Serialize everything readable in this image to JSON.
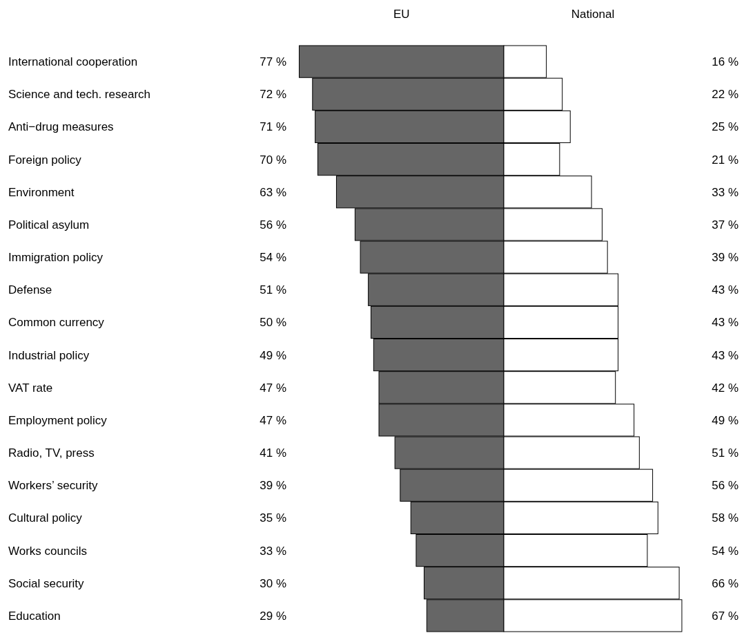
{
  "chart_data": [
    {
      "type": "bar",
      "orientation": "horizontal",
      "xlim": [
        77,
        0
      ],
      "categories": [
        "International cooperation",
        "Science and tech. research",
        "Anti−drug measures",
        "Foreign policy",
        "Environment",
        "Political asylum",
        "Immigration policy",
        "Defense",
        "Common currency",
        "Industrial policy",
        "VAT rate",
        "Employment policy",
        "Radio, TV, press",
        "Workers’ security",
        "Cultural policy",
        "Works councils",
        "Social security",
        "Education"
      ],
      "series": [
        {
          "name": "EU",
          "color": "#666666",
          "values": [
            77,
            72,
            71,
            70,
            63,
            56,
            54,
            51,
            50,
            49,
            47,
            47,
            41,
            39,
            35,
            33,
            30,
            29
          ],
          "value_labels": [
            "77 %",
            "72 %",
            "71 %",
            "70 %",
            "63 %",
            "56 %",
            "54 %",
            "51 %",
            "50 %",
            "49 %",
            "47 %",
            "47 %",
            "41 %",
            "39 %",
            "35 %",
            "33 %",
            "30 %",
            "29 %"
          ]
        }
      ]
    },
    {
      "type": "bar",
      "orientation": "horizontal",
      "xlim": [
        0,
        67
      ],
      "categories": [
        null,
        null,
        null,
        null,
        null,
        null,
        null,
        null,
        null,
        null,
        null,
        null,
        null,
        null,
        null,
        null,
        null,
        null
      ],
      "series": [
        {
          "name": "National",
          "color": "#ffffff",
          "values": [
            16,
            22,
            25,
            21,
            33,
            37,
            39,
            43,
            43,
            43,
            42,
            49,
            51,
            56,
            58,
            54,
            66,
            67
          ],
          "value_labels": [
            "16 %",
            "22 %",
            "25 %",
            "21 %",
            "33 %",
            "37 %",
            "39 %",
            "43 %",
            "43 %",
            "43 %",
            "42 %",
            "49 %",
            "51 %",
            "56 %",
            "58 %",
            "54 %",
            "66 %",
            "67 %"
          ]
        }
      ]
    }
  ]
}
